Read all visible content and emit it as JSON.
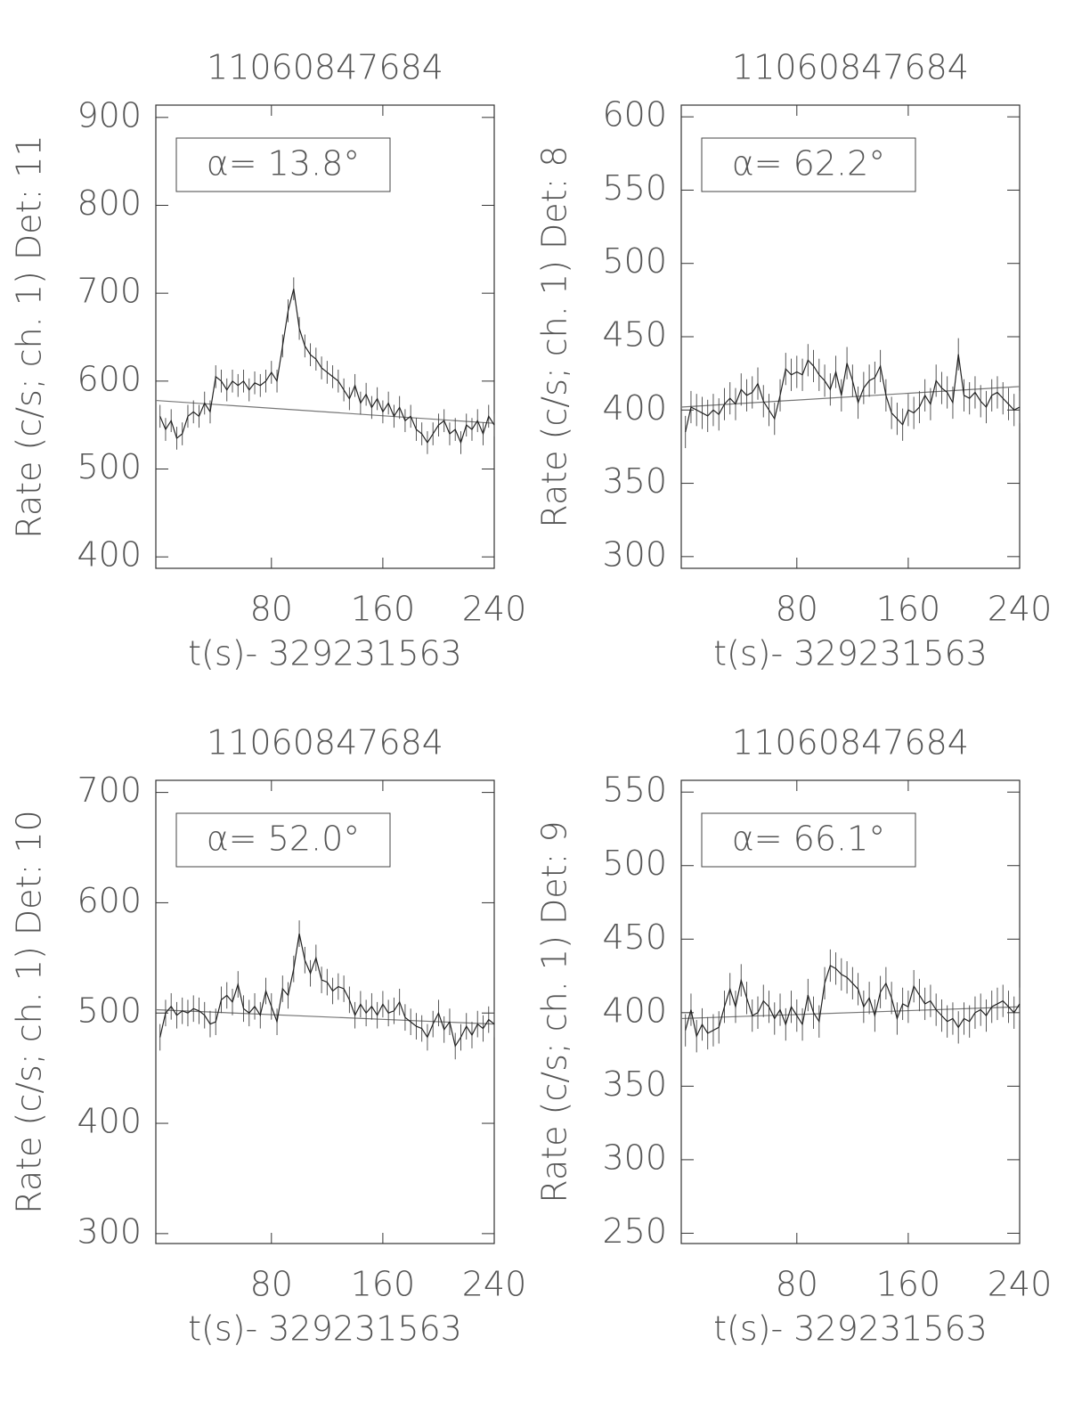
{
  "chart_data": [
    {
      "type": "line",
      "title": "11060847684",
      "ylabel": "Rate (c/s; ch. 1) Det: 11",
      "xlabel": "t(s)- 329231563",
      "annotation": "α= 13.8°",
      "xlim": [
        -3,
        240
      ],
      "xticks": [
        80,
        160,
        240
      ],
      "ylim": [
        387,
        914
      ],
      "yticks": [
        400,
        500,
        600,
        700,
        800,
        900
      ],
      "x": [
        0,
        4,
        8,
        12,
        16,
        20,
        24,
        28,
        32,
        36,
        40,
        44,
        48,
        52,
        56,
        60,
        64,
        68,
        72,
        76,
        80,
        84,
        88,
        92,
        96,
        100,
        104,
        108,
        112,
        116,
        120,
        124,
        128,
        132,
        136,
        140,
        144,
        148,
        152,
        156,
        160,
        164,
        168,
        172,
        176,
        180,
        184,
        188,
        192,
        196,
        200,
        204,
        208,
        212,
        216,
        220,
        224,
        228,
        232,
        236,
        240
      ],
      "values": [
        560,
        545,
        555,
        535,
        540,
        560,
        565,
        560,
        575,
        565,
        605,
        600,
        590,
        600,
        595,
        600,
        590,
        598,
        595,
        600,
        610,
        600,
        640,
        680,
        705,
        660,
        640,
        630,
        625,
        615,
        610,
        605,
        600,
        590,
        580,
        595,
        575,
        585,
        570,
        580,
        565,
        575,
        560,
        570,
        555,
        560,
        545,
        540,
        530,
        540,
        550,
        555,
        540,
        545,
        530,
        550,
        545,
        555,
        540,
        560,
        550
      ],
      "error": 13,
      "color": "#222222",
      "fit": {
        "x": [
          -3,
          240
        ],
        "values": [
          578,
          552
        ],
        "color": "#777777"
      }
    },
    {
      "type": "line",
      "title": "11060847684",
      "ylabel": "Rate (c/s; ch. 1) Det: 8",
      "xlabel": "t(s)- 329231563",
      "annotation": "α= 62.2°",
      "xlim": [
        -3,
        240
      ],
      "xticks": [
        80,
        160,
        240
      ],
      "ylim": [
        292,
        608
      ],
      "yticks": [
        300,
        350,
        400,
        450,
        500,
        550,
        600
      ],
      "x": [
        0,
        4,
        8,
        12,
        16,
        20,
        24,
        28,
        32,
        36,
        40,
        44,
        48,
        52,
        56,
        60,
        64,
        68,
        72,
        76,
        80,
        84,
        88,
        92,
        96,
        100,
        104,
        108,
        112,
        116,
        120,
        124,
        128,
        132,
        136,
        140,
        144,
        148,
        152,
        156,
        160,
        164,
        168,
        172,
        176,
        180,
        184,
        188,
        192,
        196,
        200,
        204,
        208,
        212,
        216,
        220,
        224,
        228,
        232,
        236,
        240
      ],
      "values": [
        385,
        402,
        400,
        398,
        396,
        400,
        397,
        404,
        408,
        404,
        414,
        410,
        412,
        418,
        406,
        400,
        394,
        410,
        428,
        424,
        426,
        424,
        434,
        430,
        424,
        420,
        414,
        426,
        410,
        432,
        420,
        405,
        415,
        420,
        422,
        430,
        410,
        398,
        394,
        390,
        400,
        398,
        402,
        410,
        404,
        420,
        415,
        412,
        405,
        438,
        410,
        408,
        412,
        406,
        402,
        410,
        412,
        408,
        404,
        400,
        402
      ],
      "error": 11,
      "color": "#222222",
      "fit": {
        "x": [
          -3,
          240
        ],
        "values": [
          402,
          416
        ],
        "color": "#777777"
      }
    },
    {
      "type": "line",
      "title": "11060847684",
      "ylabel": "Rate (c/s; ch. 1) Det: 10",
      "xlabel": "t(s)- 329231563",
      "annotation": "α= 52.0°",
      "xlim": [
        -3,
        240
      ],
      "xticks": [
        80,
        160,
        240
      ],
      "ylim": [
        291,
        711
      ],
      "yticks": [
        300,
        400,
        500,
        600,
        700
      ],
      "x": [
        0,
        4,
        8,
        12,
        16,
        20,
        24,
        28,
        32,
        36,
        40,
        44,
        48,
        52,
        56,
        60,
        64,
        68,
        72,
        76,
        80,
        84,
        88,
        92,
        96,
        100,
        104,
        108,
        112,
        116,
        120,
        124,
        128,
        132,
        136,
        140,
        144,
        148,
        152,
        156,
        160,
        164,
        168,
        172,
        176,
        180,
        184,
        188,
        192,
        196,
        200,
        204,
        208,
        212,
        216,
        220,
        224,
        228,
        232,
        236,
        240
      ],
      "values": [
        478,
        500,
        506,
        498,
        502,
        500,
        504,
        502,
        498,
        490,
        492,
        512,
        516,
        510,
        526,
        504,
        500,
        506,
        498,
        520,
        506,
        492,
        522,
        516,
        540,
        572,
        548,
        536,
        550,
        530,
        528,
        520,
        524,
        522,
        512,
        498,
        508,
        500,
        506,
        498,
        508,
        500,
        502,
        510,
        496,
        492,
        488,
        486,
        478,
        490,
        500,
        485,
        492,
        470,
        478,
        488,
        480,
        490,
        486,
        494,
        490
      ],
      "error": 12,
      "color": "#222222",
      "fit": {
        "x": [
          -3,
          240
        ],
        "values": [
          503,
          490
        ],
        "color": "#777777"
      }
    },
    {
      "type": "line",
      "title": "11060847684",
      "ylabel": "Rate (c/s; ch. 1) Det: 9",
      "xlabel": "t(s)- 329231563",
      "annotation": "α= 66.1°",
      "xlim": [
        -3,
        240
      ],
      "xticks": [
        80,
        160,
        240
      ],
      "ylim": [
        243,
        558
      ],
      "yticks": [
        250,
        300,
        350,
        400,
        450,
        500,
        550
      ],
      "x": [
        0,
        4,
        8,
        12,
        16,
        20,
        24,
        28,
        32,
        36,
        40,
        44,
        48,
        52,
        56,
        60,
        64,
        68,
        72,
        76,
        80,
        84,
        88,
        92,
        96,
        100,
        104,
        108,
        112,
        116,
        120,
        124,
        128,
        132,
        136,
        140,
        144,
        148,
        152,
        156,
        160,
        164,
        168,
        172,
        176,
        180,
        184,
        188,
        192,
        196,
        200,
        204,
        208,
        212,
        216,
        220,
        224,
        228,
        232,
        236,
        240
      ],
      "values": [
        388,
        402,
        384,
        392,
        386,
        388,
        390,
        404,
        416,
        404,
        422,
        410,
        398,
        400,
        408,
        404,
        396,
        402,
        392,
        404,
        398,
        392,
        412,
        400,
        394,
        420,
        432,
        430,
        426,
        424,
        420,
        416,
        404,
        410,
        398,
        414,
        420,
        410,
        396,
        406,
        404,
        418,
        412,
        406,
        408,
        402,
        398,
        394,
        396,
        390,
        396,
        394,
        400,
        402,
        398,
        404,
        406,
        408,
        404,
        400,
        406
      ],
      "error": 11,
      "color": "#222222",
      "fit": {
        "x": [
          -3,
          240
        ],
        "values": [
          396,
          404
        ],
        "color": "#777777"
      }
    }
  ]
}
